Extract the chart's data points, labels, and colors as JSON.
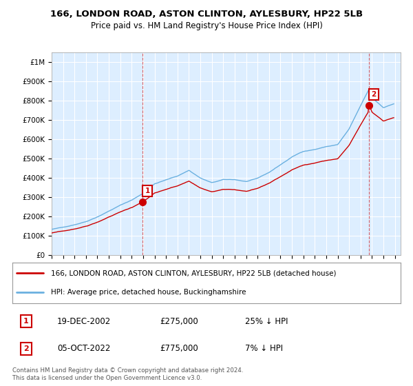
{
  "title": "166, LONDON ROAD, ASTON CLINTON, AYLESBURY, HP22 5LB",
  "subtitle": "Price paid vs. HM Land Registry's House Price Index (HPI)",
  "ylabel_ticks": [
    "£0",
    "£100K",
    "£200K",
    "£300K",
    "£400K",
    "£500K",
    "£600K",
    "£700K",
    "£800K",
    "£900K",
    "£1M"
  ],
  "ytick_values": [
    0,
    100000,
    200000,
    300000,
    400000,
    500000,
    600000,
    700000,
    800000,
    900000,
    1000000
  ],
  "ylim": [
    0,
    1050000
  ],
  "xlim_start": 1995.0,
  "xlim_end": 2025.5,
  "sale1_date": 2002.96,
  "sale1_price": 275000,
  "sale1_label": "1",
  "sale2_date": 2022.75,
  "sale2_price": 775000,
  "sale2_label": "2",
  "legend_line1": "166, LONDON ROAD, ASTON CLINTON, AYLESBURY, HP22 5LB (detached house)",
  "legend_line2": "HPI: Average price, detached house, Buckinghamshire",
  "annotation1_date": "19-DEC-2002",
  "annotation1_price": "£275,000",
  "annotation1_note": "25% ↓ HPI",
  "annotation2_date": "05-OCT-2022",
  "annotation2_price": "£775,000",
  "annotation2_note": "7% ↓ HPI",
  "footer": "Contains HM Land Registry data © Crown copyright and database right 2024.\nThis data is licensed under the Open Government Licence v3.0.",
  "hpi_color": "#6ab0e0",
  "sale_color": "#cc0000",
  "background_color": "#ffffff",
  "plot_bg_color": "#ddeeff",
  "grid_color": "#ffffff"
}
